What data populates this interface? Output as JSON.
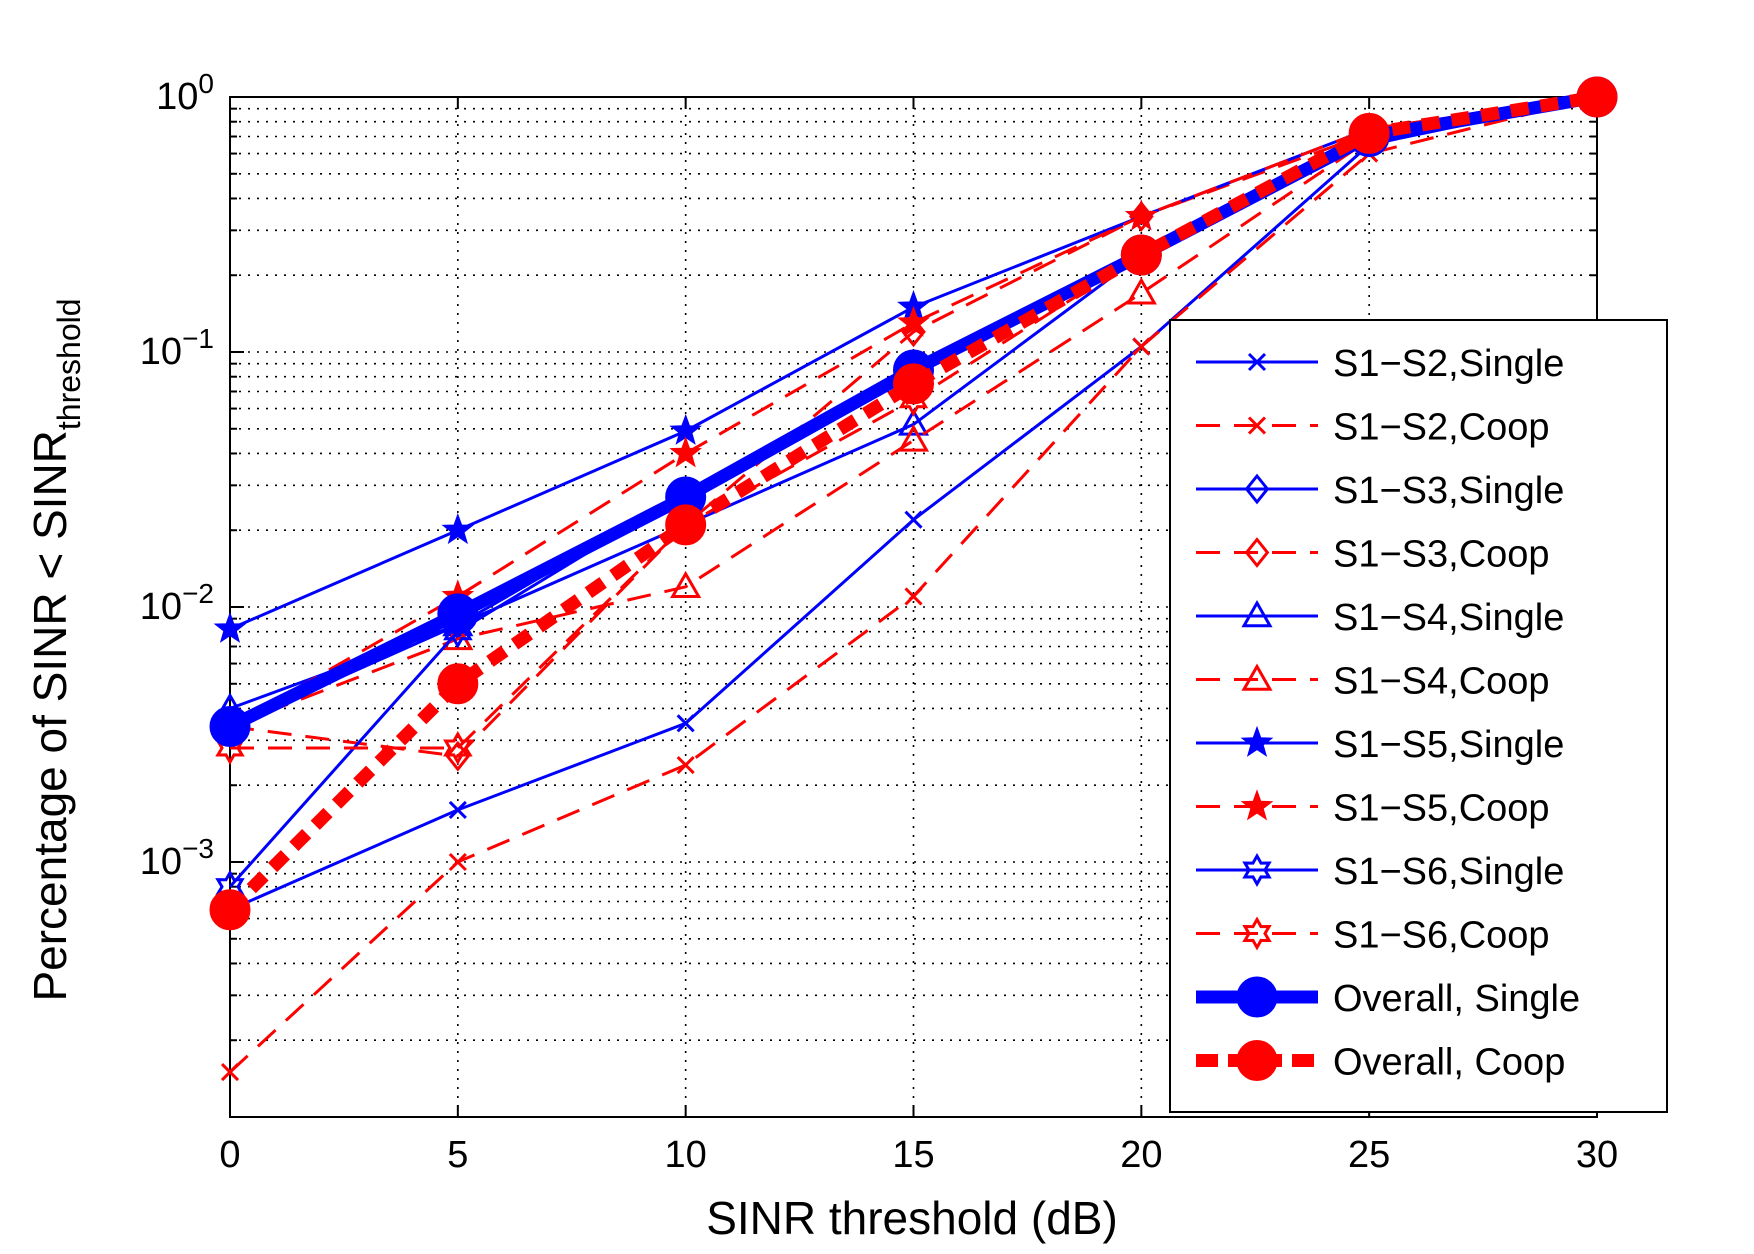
{
  "chart_data": {
    "type": "line",
    "title": "",
    "xlabel": "SINR threshold (dB)",
    "ylabel": {
      "main": "Percentage of SINR < SINR",
      "subscript": "threshold"
    },
    "x": [
      0,
      5,
      10,
      15,
      20,
      25,
      30
    ],
    "xlim": [
      0,
      30
    ],
    "x_ticks": [
      0,
      5,
      10,
      15,
      20,
      25,
      30
    ],
    "ylim": [
      0.0001,
      1
    ],
    "y_scale": "log",
    "y_ticks": [
      {
        "value": 0.001,
        "base": "10",
        "exp": "−3"
      },
      {
        "value": 0.01,
        "base": "10",
        "exp": "−2"
      },
      {
        "value": 0.1,
        "base": "10",
        "exp": "−1"
      },
      {
        "value": 1,
        "base": "10",
        "exp": "0"
      }
    ],
    "grid": true,
    "legend_position": "right",
    "series": [
      {
        "name": "S1−S2,Single",
        "color": "#0000ff",
        "dash": "solid",
        "marker": "x",
        "weight": "thin",
        "values": [
          0.00065,
          0.0016,
          0.0035,
          0.022,
          0.105,
          0.65,
          1.0
        ]
      },
      {
        "name": "S1−S2,Coop",
        "color": "#ff0000",
        "dash": "dashed",
        "marker": "x",
        "weight": "thin",
        "values": [
          0.00015,
          0.001,
          0.0024,
          0.011,
          0.105,
          0.6,
          1.0
        ]
      },
      {
        "name": "S1−S3,Single",
        "color": "#0000ff",
        "dash": "solid",
        "marker": "diamond",
        "weight": "thin",
        "values": [
          0.0034,
          0.0085,
          0.028,
          0.085,
          0.24,
          0.7,
          1.0
        ]
      },
      {
        "name": "S1−S3,Coop",
        "color": "#ff0000",
        "dash": "dashed",
        "marker": "diamond",
        "weight": "thin",
        "values": [
          0.0034,
          0.0026,
          0.021,
          0.12,
          0.34,
          0.72,
          1.0
        ]
      },
      {
        "name": "S1−S4,Single",
        "color": "#0000ff",
        "dash": "solid",
        "marker": "triangle",
        "weight": "thin",
        "values": [
          0.004,
          0.0085,
          0.021,
          0.052,
          0.24,
          0.7,
          1.0
        ]
      },
      {
        "name": "S1−S4,Coop",
        "color": "#ff0000",
        "dash": "dashed",
        "marker": "triangle",
        "weight": "thin",
        "values": [
          0.0034,
          0.0075,
          0.012,
          0.045,
          0.17,
          0.68,
          1.0
        ]
      },
      {
        "name": "S1−S5,Single",
        "color": "#0000ff",
        "dash": "solid",
        "marker": "star",
        "weight": "thin",
        "values": [
          0.0082,
          0.02,
          0.049,
          0.15,
          0.34,
          0.75,
          1.0
        ]
      },
      {
        "name": "S1−S5,Coop",
        "color": "#ff0000",
        "dash": "dashed",
        "marker": "star",
        "weight": "thin",
        "values": [
          0.0034,
          0.011,
          0.04,
          0.13,
          0.34,
          0.75,
          1.0
        ]
      },
      {
        "name": "S1−S6,Single",
        "color": "#0000ff",
        "dash": "solid",
        "marker": "hexagram",
        "weight": "thin",
        "values": [
          0.0008,
          0.008,
          0.028,
          0.085,
          0.24,
          0.7,
          1.0
        ]
      },
      {
        "name": "S1−S6,Coop",
        "color": "#ff0000",
        "dash": "dashed",
        "marker": "hexagram",
        "weight": "thin",
        "values": [
          0.0028,
          0.0028,
          0.021,
          0.065,
          0.24,
          0.7,
          1.0
        ]
      },
      {
        "name": "Overall, Single",
        "color": "#0000ff",
        "dash": "solid",
        "marker": "circle",
        "weight": "thick",
        "values": [
          0.0034,
          0.0094,
          0.027,
          0.085,
          0.24,
          0.7,
          1.0
        ]
      },
      {
        "name": "Overall, Coop",
        "color": "#ff0000",
        "dash": "dashed",
        "marker": "circle",
        "weight": "thick",
        "values": [
          0.00065,
          0.005,
          0.021,
          0.075,
          0.24,
          0.72,
          1.0
        ]
      }
    ]
  }
}
